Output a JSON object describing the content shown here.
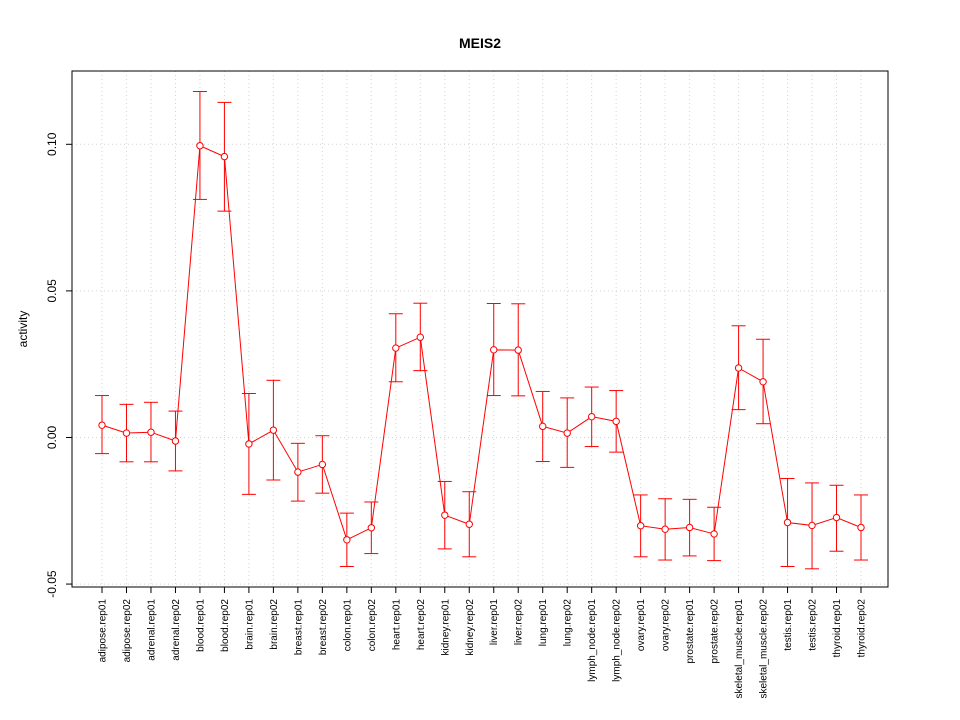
{
  "chart_data": {
    "type": "line",
    "title": "MEIS2",
    "xlabel": "",
    "ylabel": "activity",
    "ylim": [
      -0.051,
      0.125
    ],
    "yticks": [
      -0.05,
      0.0,
      0.05,
      0.1
    ],
    "ytick_labels": [
      "-0.05",
      "0.00",
      "0.05",
      "0.10"
    ],
    "grid": true,
    "color": "#ff0000",
    "grid_color": "#d3d3d3",
    "categories": [
      "adipose.rep01",
      "adipose.rep02",
      "adrenal.rep01",
      "adrenal.rep02",
      "blood.rep01",
      "blood.rep02",
      "brain.rep01",
      "brain.rep02",
      "breast.rep01",
      "breast.rep02",
      "colon.rep01",
      "colon.rep02",
      "heart.rep01",
      "heart.rep02",
      "kidney.rep01",
      "kidney.rep02",
      "liver.rep01",
      "liver.rep02",
      "lung.rep01",
      "lung.rep02",
      "lymph_node.rep01",
      "lymph_node.rep02",
      "ovary.rep01",
      "ovary.rep02",
      "prostate.rep01",
      "prostate.rep02",
      "skeletal_muscle.rep01",
      "skeletal_muscle.rep02",
      "testis.rep01",
      "testis.rep02",
      "thyroid.rep01",
      "thyroid.rep02"
    ],
    "series": [
      {
        "name": "MEIS2",
        "values": [
          0.0042,
          0.0015,
          0.0018,
          -0.0012,
          0.0995,
          0.0958,
          -0.0022,
          0.0025,
          -0.0118,
          -0.0092,
          -0.0349,
          -0.0308,
          0.0305,
          0.0342,
          -0.0265,
          -0.0296,
          0.0299,
          0.0298,
          0.0038,
          0.0015,
          0.0071,
          0.0055,
          -0.0301,
          -0.0313,
          -0.0307,
          -0.0329,
          0.0237,
          0.019,
          -0.029,
          -0.03,
          -0.0273,
          -0.0307
        ],
        "lower": [
          -0.0055,
          -0.0083,
          -0.0083,
          -0.0114,
          0.0812,
          0.0772,
          -0.0194,
          -0.0145,
          -0.0217,
          -0.019,
          -0.044,
          -0.0396,
          0.019,
          0.0228,
          -0.038,
          -0.0407,
          0.0143,
          0.0142,
          -0.0082,
          -0.0102,
          -0.0031,
          -0.005,
          -0.0407,
          -0.0418,
          -0.0404,
          -0.042,
          0.0095,
          0.0047,
          -0.044,
          -0.0448,
          -0.0388,
          -0.0418
        ],
        "upper": [
          0.0143,
          0.0113,
          0.012,
          0.009,
          0.118,
          0.1143,
          0.015,
          0.0195,
          -0.002,
          0.0006,
          -0.0258,
          -0.022,
          0.0422,
          0.0458,
          -0.015,
          -0.0185,
          0.0457,
          0.0456,
          0.0157,
          0.0135,
          0.0172,
          0.016,
          -0.0196,
          -0.0209,
          -0.0211,
          -0.0238,
          0.0381,
          0.0335,
          -0.014,
          -0.0155,
          -0.0163,
          -0.0196
        ]
      }
    ]
  }
}
